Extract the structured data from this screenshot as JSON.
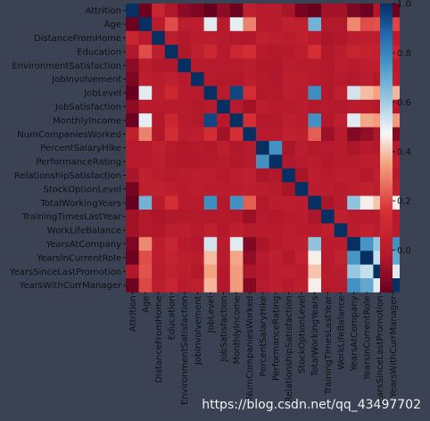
{
  "chart_data": {
    "type": "heatmap",
    "variables": [
      "Attrition",
      "Age",
      "DistanceFromHome",
      "Education",
      "EnvironmentSatisfaction",
      "JobInvolvement",
      "JobLevel",
      "JobSatisfaction",
      "MonthlyIncome",
      "NumCompaniesWorked",
      "PercentSalaryHike",
      "PerformanceRating",
      "RelationshipSatisfaction",
      "StockOptionLevel",
      "TotalWorkingYears",
      "TrainingTimesLastYear",
      "WorkLifeBalance",
      "YearsAtCompany",
      "YearsInCurrentRole",
      "YearsSinceLastPromotion",
      "YearsWithCurrManager"
    ],
    "matrix": [
      [
        1.0,
        -0.16,
        0.08,
        -0.03,
        -0.1,
        -0.13,
        -0.17,
        -0.1,
        -0.16,
        0.04,
        -0.01,
        0.0,
        -0.05,
        -0.14,
        -0.17,
        -0.06,
        -0.06,
        -0.13,
        -0.16,
        -0.03,
        -0.16
      ],
      [
        -0.16,
        1.0,
        0.0,
        0.21,
        0.01,
        0.03,
        0.51,
        0.0,
        0.5,
        0.3,
        0.0,
        0.0,
        0.05,
        0.04,
        0.68,
        -0.02,
        -0.02,
        0.31,
        0.21,
        0.22,
        0.2
      ],
      [
        0.08,
        0.0,
        1.0,
        0.02,
        -0.02,
        0.01,
        0.01,
        0.0,
        -0.02,
        -0.03,
        0.04,
        0.03,
        0.01,
        0.04,
        0.0,
        -0.04,
        -0.03,
        0.01,
        0.02,
        0.01,
        0.01
      ],
      [
        -0.03,
        0.21,
        0.02,
        1.0,
        -0.03,
        0.04,
        0.1,
        -0.01,
        0.09,
        0.13,
        -0.01,
        -0.02,
        -0.01,
        0.02,
        0.15,
        -0.03,
        0.01,
        0.07,
        0.06,
        0.05,
        0.07
      ],
      [
        -0.1,
        0.01,
        -0.02,
        -0.03,
        1.0,
        -0.01,
        0.0,
        -0.01,
        -0.01,
        0.01,
        -0.03,
        -0.03,
        0.01,
        0.0,
        0.0,
        -0.02,
        0.03,
        0.0,
        0.02,
        0.02,
        0.0
      ],
      [
        -0.13,
        0.03,
        0.01,
        0.04,
        -0.01,
        1.0,
        -0.01,
        -0.02,
        -0.02,
        0.02,
        -0.02,
        -0.03,
        0.03,
        0.02,
        -0.01,
        -0.02,
        -0.01,
        -0.02,
        0.01,
        -0.02,
        0.03
      ],
      [
        -0.17,
        0.51,
        0.01,
        0.1,
        0.0,
        -0.01,
        1.0,
        0.0,
        0.95,
        0.14,
        -0.03,
        -0.02,
        0.02,
        0.01,
        0.78,
        -0.02,
        0.04,
        0.53,
        0.39,
        0.35,
        0.38
      ],
      [
        -0.1,
        0.0,
        0.0,
        -0.01,
        -0.01,
        -0.02,
        0.0,
        1.0,
        -0.01,
        -0.06,
        0.02,
        0.0,
        -0.01,
        0.01,
        -0.02,
        -0.01,
        -0.02,
        0.0,
        0.0,
        -0.02,
        -0.03
      ],
      [
        -0.16,
        0.5,
        -0.02,
        0.09,
        -0.01,
        -0.02,
        0.95,
        -0.01,
        1.0,
        0.15,
        -0.03,
        -0.02,
        0.03,
        0.01,
        0.77,
        -0.02,
        0.03,
        0.51,
        0.36,
        0.34,
        0.34
      ],
      [
        0.04,
        0.3,
        -0.03,
        0.13,
        0.01,
        0.02,
        0.14,
        -0.06,
        0.15,
        1.0,
        -0.01,
        -0.01,
        0.05,
        0.03,
        0.24,
        -0.07,
        -0.01,
        -0.12,
        -0.09,
        -0.04,
        -0.11
      ],
      [
        -0.01,
        0.0,
        0.04,
        -0.01,
        -0.03,
        -0.02,
        -0.03,
        0.02,
        -0.03,
        -0.01,
        1.0,
        0.77,
        -0.04,
        0.01,
        -0.02,
        -0.01,
        0.0,
        -0.04,
        -0.01,
        -0.02,
        -0.01
      ],
      [
        0.0,
        0.0,
        0.03,
        -0.02,
        -0.03,
        -0.03,
        -0.02,
        0.0,
        -0.02,
        -0.01,
        0.77,
        1.0,
        -0.03,
        0.0,
        0.01,
        -0.02,
        0.0,
        0.0,
        0.03,
        0.02,
        0.02
      ],
      [
        -0.05,
        0.05,
        0.01,
        -0.01,
        0.01,
        0.03,
        0.02,
        -0.01,
        0.03,
        0.05,
        -0.04,
        -0.03,
        1.0,
        -0.05,
        0.02,
        0.0,
        0.02,
        0.02,
        -0.02,
        0.03,
        -0.01
      ],
      [
        -0.14,
        0.04,
        0.04,
        0.02,
        0.0,
        0.02,
        0.01,
        0.01,
        0.01,
        0.03,
        0.01,
        0.0,
        -0.05,
        1.0,
        0.01,
        0.01,
        0.0,
        0.02,
        0.05,
        0.01,
        0.02
      ],
      [
        -0.17,
        0.68,
        0.0,
        0.15,
        0.0,
        -0.01,
        0.78,
        -0.02,
        0.77,
        0.24,
        -0.02,
        0.01,
        0.02,
        0.01,
        1.0,
        -0.04,
        0.0,
        0.63,
        0.46,
        0.4,
        0.46
      ],
      [
        -0.06,
        -0.02,
        -0.04,
        -0.03,
        -0.02,
        -0.02,
        -0.02,
        -0.01,
        -0.02,
        -0.07,
        -0.01,
        -0.02,
        0.0,
        0.01,
        -0.04,
        1.0,
        0.03,
        0.0,
        -0.01,
        0.0,
        -0.01
      ],
      [
        -0.06,
        -0.02,
        -0.03,
        0.01,
        0.03,
        -0.01,
        0.04,
        -0.02,
        0.03,
        -0.01,
        0.0,
        0.0,
        0.02,
        0.0,
        0.0,
        0.03,
        1.0,
        0.01,
        0.05,
        0.01,
        0.0
      ],
      [
        -0.13,
        0.31,
        0.01,
        0.07,
        0.0,
        -0.02,
        0.53,
        0.0,
        0.51,
        -0.12,
        -0.04,
        0.0,
        0.02,
        0.02,
        0.63,
        0.0,
        0.01,
        1.0,
        0.76,
        0.62,
        0.77
      ],
      [
        -0.16,
        0.21,
        0.02,
        0.06,
        0.02,
        0.01,
        0.39,
        0.0,
        0.36,
        -0.09,
        -0.01,
        0.03,
        -0.02,
        0.05,
        0.46,
        -0.01,
        0.05,
        0.76,
        1.0,
        0.55,
        0.71
      ],
      [
        -0.03,
        0.22,
        0.01,
        0.05,
        0.02,
        -0.02,
        0.35,
        -0.02,
        0.34,
        -0.04,
        -0.02,
        0.02,
        0.03,
        0.01,
        0.4,
        0.0,
        0.01,
        0.62,
        0.55,
        1.0,
        0.51
      ],
      [
        -0.16,
        0.2,
        0.01,
        0.07,
        0.0,
        0.03,
        0.38,
        -0.03,
        0.34,
        -0.11,
        -0.01,
        0.02,
        -0.01,
        0.02,
        0.46,
        -0.01,
        0.0,
        0.77,
        0.71,
        0.51,
        1.0
      ]
    ],
    "colorbar": {
      "min": -0.17,
      "max": 1.0,
      "ticks": [
        "0.0",
        "0.2",
        "0.4",
        "0.6",
        "0.8",
        "1.0"
      ],
      "tick_values": [
        0.0,
        0.2,
        0.4,
        0.6,
        0.8,
        1.0
      ],
      "colormap": "RdBu"
    }
  },
  "watermark": "https://blog.csdn.net/qq_43497702"
}
